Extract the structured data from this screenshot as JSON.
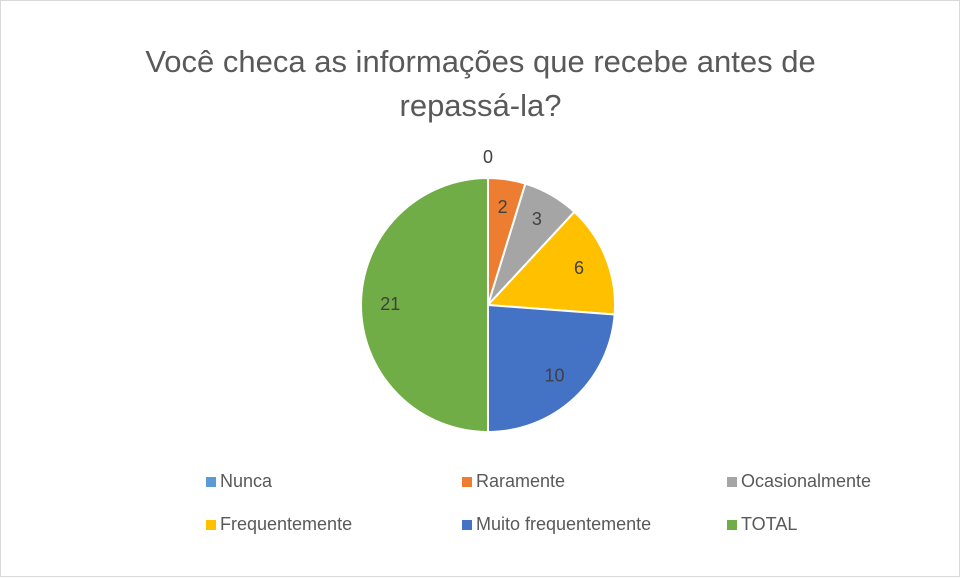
{
  "chart_data": {
    "type": "pie",
    "title": "Você checa as informações que recebe antes de repassá-la?",
    "categories": [
      "Nunca",
      "Raramente",
      "Ocasionalmente",
      "Frequentemente",
      "Muito frequentemente",
      "TOTAL"
    ],
    "values": [
      0,
      2,
      3,
      6,
      10,
      21
    ],
    "colors": [
      "#5b9bd5",
      "#ed7d31",
      "#a5a5a5",
      "#ffc000",
      "#4472c4",
      "#70ad47"
    ],
    "legend": "bottom"
  }
}
